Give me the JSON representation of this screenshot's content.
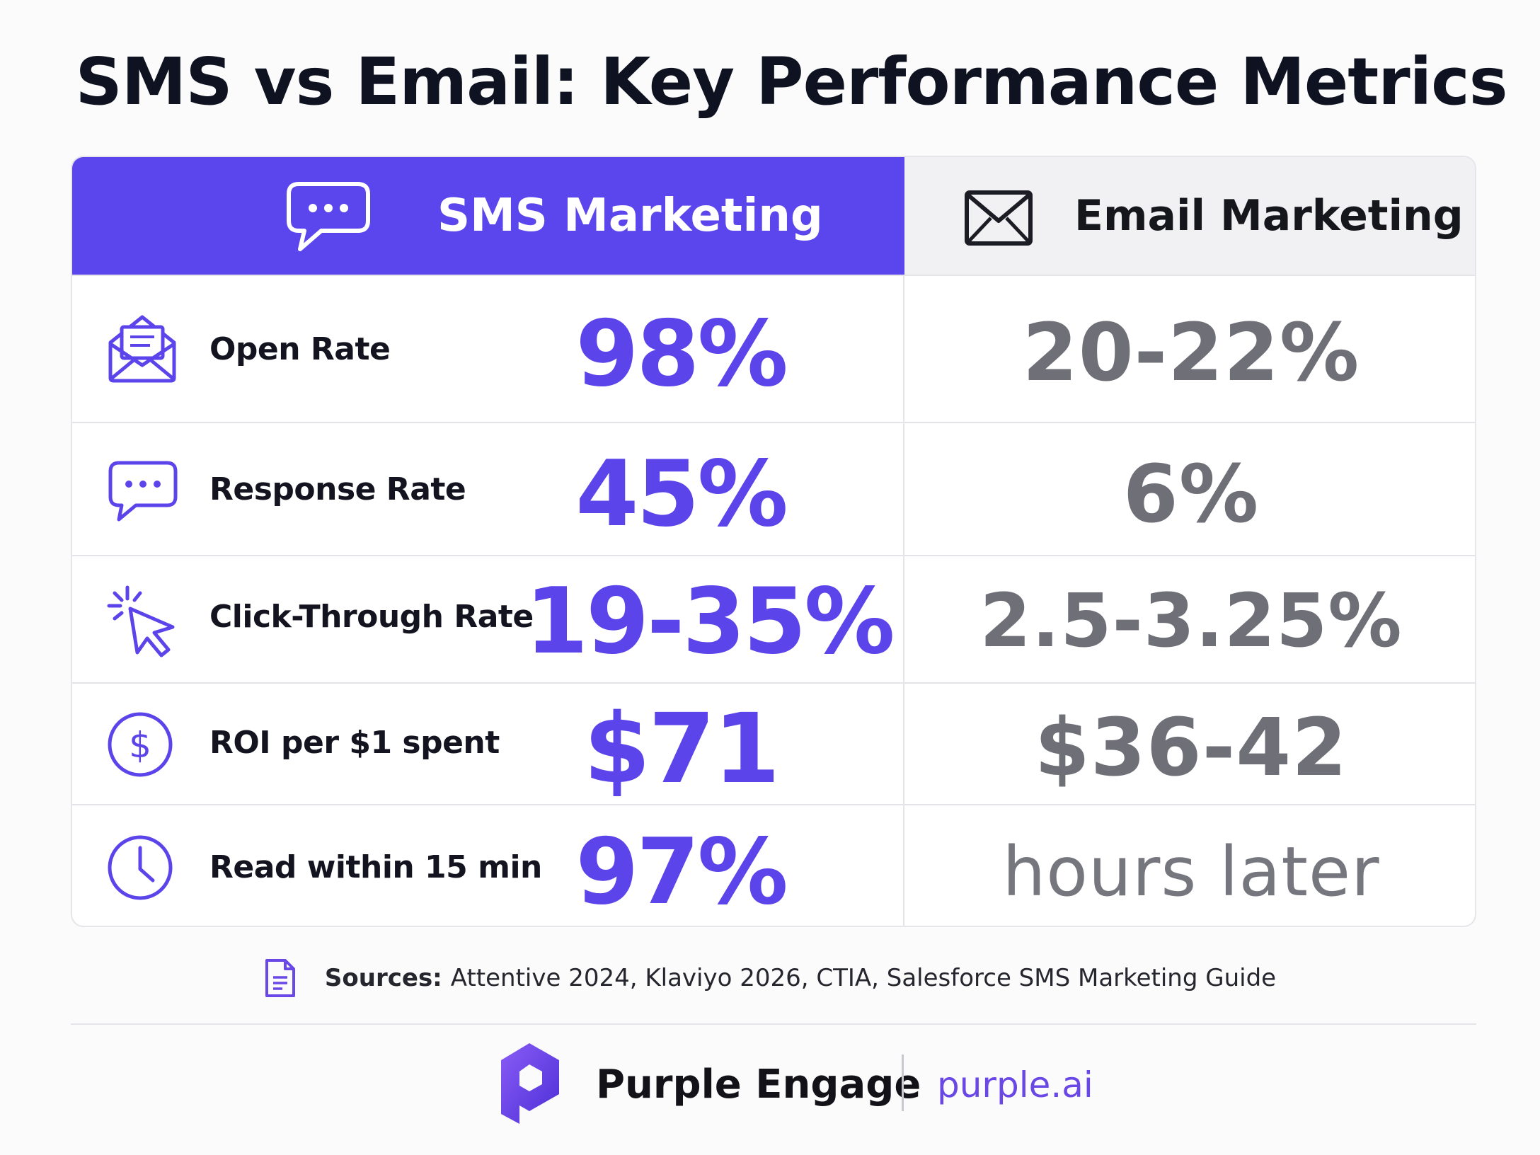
{
  "title": "SMS vs Email: Key Performance Metrics",
  "columns": {
    "sms": "SMS Marketing",
    "email": "Email Marketing"
  },
  "rows": [
    {
      "label": "Open Rate",
      "sms": "98%",
      "email": "20-22%",
      "icon": "open-envelope-icon"
    },
    {
      "label": "Response Rate",
      "sms": "45%",
      "email": "6%",
      "icon": "chat-bubble-icon"
    },
    {
      "label": "Click-Through Rate",
      "sms": "19-35%",
      "email": "2.5-3.25%",
      "icon": "cursor-click-icon"
    },
    {
      "label": "ROI per $1 spent",
      "sms": "$71",
      "email": "$36-42",
      "icon": "dollar-circle-icon"
    },
    {
      "label": "Read within 15 min",
      "sms": "97%",
      "email": "hours later",
      "icon": "clock-icon"
    }
  ],
  "sources": {
    "label": "Sources:",
    "text": "Attentive 2024, Klaviyo 2026, CTIA, Salesforce SMS Marketing Guide"
  },
  "brand": {
    "name": "Purple Engage",
    "url": "purple.ai"
  },
  "colors": {
    "accent": "#5a46ec",
    "email_value": "#6f6f78",
    "header_email_bg": "#f1f1f3"
  }
}
